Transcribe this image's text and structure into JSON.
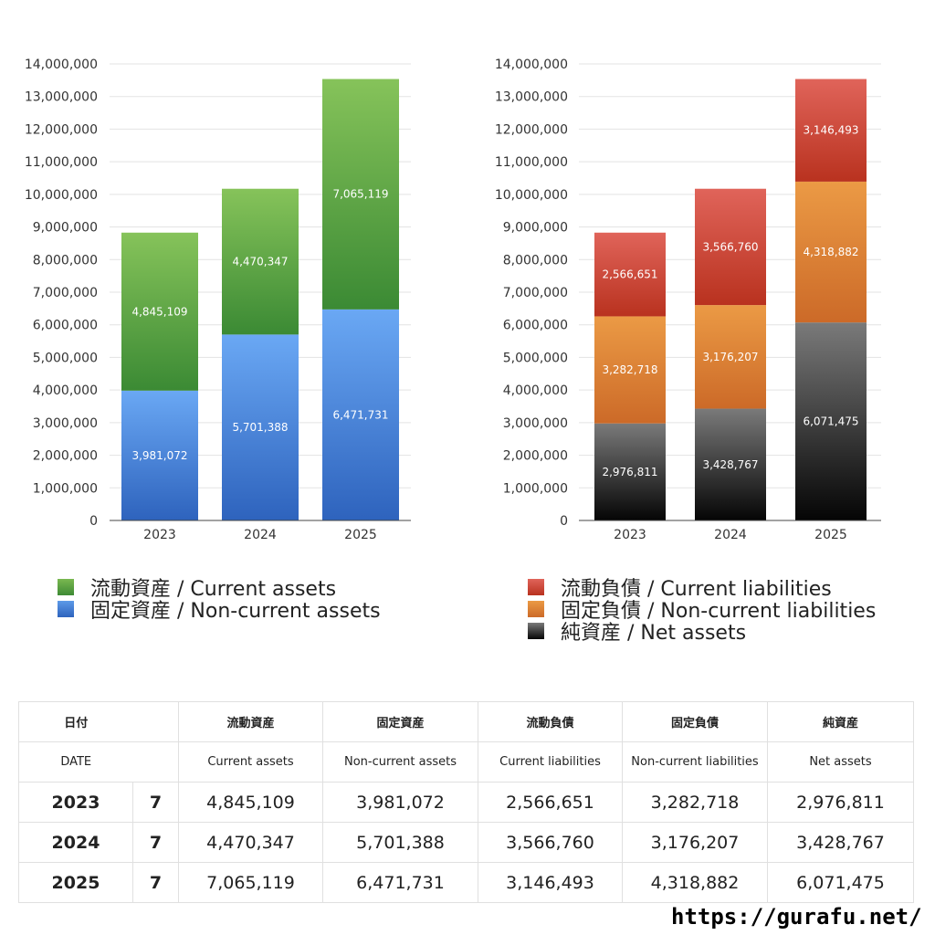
{
  "chart_data": [
    {
      "type": "bar",
      "stacked": true,
      "categories": [
        "2023",
        "2024",
        "2025"
      ],
      "ylim": [
        0,
        14000000
      ],
      "yticks": [
        "0",
        "1,000,000",
        "2,000,000",
        "3,000,000",
        "4,000,000",
        "5,000,000",
        "6,000,000",
        "7,000,000",
        "8,000,000",
        "9,000,000",
        "10,000,000",
        "11,000,000",
        "12,000,000",
        "13,000,000",
        "14,000,000"
      ],
      "grid": true,
      "legend_position": "bottom",
      "series": [
        {
          "name": "固定資産 / Non-current assets",
          "values": [
            3981072,
            5701388,
            6471731
          ],
          "labels": [
            "3,981,072",
            "5,701,388",
            "6,471,731"
          ],
          "color_top": "#6aa8f4",
          "color_bottom": "#2e63bd"
        },
        {
          "name": "流動資産 / Current assets",
          "values": [
            4845109,
            4470347,
            7065119
          ],
          "labels": [
            "4,845,109",
            "4,470,347",
            "7,065,119"
          ],
          "color_top": "#86c35a",
          "color_bottom": "#3b8a34"
        }
      ],
      "legend": [
        {
          "name": "流動資産 / Current assets",
          "color": "#4fa33f"
        },
        {
          "name": "固定資産 / Non-current assets",
          "color": "#3f7fd9"
        }
      ]
    },
    {
      "type": "bar",
      "stacked": true,
      "categories": [
        "2023",
        "2024",
        "2025"
      ],
      "ylim": [
        0,
        14000000
      ],
      "yticks": [
        "0",
        "1,000,000",
        "2,000,000",
        "3,000,000",
        "4,000,000",
        "5,000,000",
        "6,000,000",
        "7,000,000",
        "8,000,000",
        "9,000,000",
        "10,000,000",
        "11,000,000",
        "12,000,000",
        "13,000,000",
        "14,000,000"
      ],
      "grid": true,
      "legend_position": "bottom",
      "series": [
        {
          "name": "純資産 / Net assets",
          "values": [
            2976811,
            3428767,
            6071475
          ],
          "labels": [
            "2,976,811",
            "3,428,767",
            "6,071,475"
          ],
          "color_top": "#7a7a7a",
          "color_bottom": "#050505"
        },
        {
          "name": "固定負債 / Non-current liabilities",
          "values": [
            3282718,
            3176207,
            4318882
          ],
          "labels": [
            "3,282,718",
            "3,176,207",
            "4,318,882"
          ],
          "color_top": "#eb9a45",
          "color_bottom": "#cc6a28"
        },
        {
          "name": "流動負債 / Current liabilities",
          "values": [
            2566651,
            3566760,
            3146493
          ],
          "labels": [
            "2,566,651",
            "3,566,760",
            "3,146,493"
          ],
          "color_top": "#e0645a",
          "color_bottom": "#b9321f"
        }
      ],
      "legend": [
        {
          "name": "流動負債 / Current liabilities",
          "color": "#d3433a"
        },
        {
          "name": "固定負債 / Non-current liabilities",
          "color": "#e5893a"
        },
        {
          "name": "純資産 / Net assets",
          "color": "#2a2a2a"
        }
      ]
    }
  ],
  "table": {
    "headers_jp": [
      "日付",
      "流動資産",
      "固定資産",
      "流動負債",
      "固定負債",
      "純資産"
    ],
    "headers_en": [
      "DATE",
      "Current assets",
      "Non-current assets",
      "Current liabilities",
      "Non-current liabilities",
      "Net assets"
    ],
    "rows": [
      {
        "year": "2023",
        "month": "7",
        "values": [
          "4,845,109",
          "3,981,072",
          "2,566,651",
          "3,282,718",
          "2,976,811"
        ]
      },
      {
        "year": "2024",
        "month": "7",
        "values": [
          "4,470,347",
          "5,701,388",
          "3,566,760",
          "3,176,207",
          "3,428,767"
        ]
      },
      {
        "year": "2025",
        "month": "7",
        "values": [
          "7,065,119",
          "6,471,731",
          "3,146,493",
          "4,318,882",
          "6,071,475"
        ]
      }
    ]
  },
  "footer": {
    "url": "https://gurafu.net/"
  }
}
